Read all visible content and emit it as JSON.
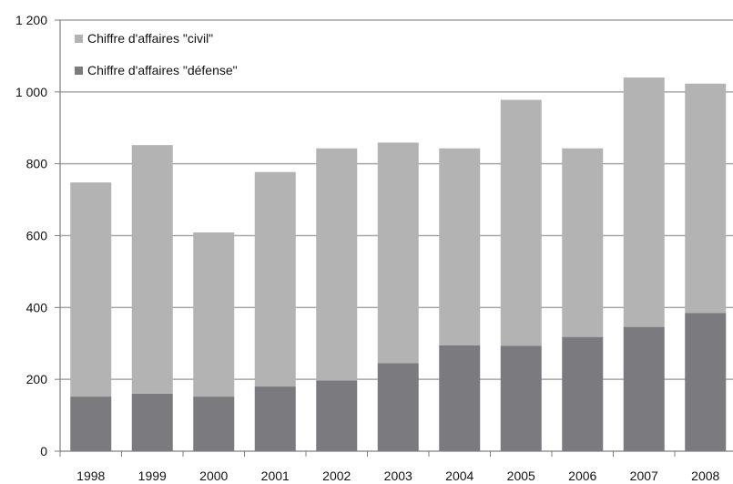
{
  "chart_data": {
    "type": "bar",
    "stacked": true,
    "title": "",
    "xlabel": "",
    "ylabel": "",
    "categories": [
      "1998",
      "1999",
      "2000",
      "2001",
      "2002",
      "2003",
      "2004",
      "2005",
      "2006",
      "2007",
      "2008"
    ],
    "series": [
      {
        "name": "Chiffre d'affaires \"défense\"",
        "color": "#7a7a7f",
        "values": [
          152,
          160,
          152,
          180,
          197,
          245,
          295,
          293,
          318,
          346,
          385
        ]
      },
      {
        "name": "Chiffre d'affaires \"civil\"",
        "color": "#b3b3b3",
        "values": [
          596,
          692,
          457,
          597,
          646,
          614,
          548,
          685,
          525,
          694,
          638
        ]
      }
    ],
    "ylim": [
      0,
      1200
    ],
    "yticks": [
      0,
      200,
      400,
      600,
      800,
      1000,
      1200
    ],
    "ytick_labels": [
      "0",
      "200",
      "400",
      "600",
      "800",
      "1 000",
      "1 200"
    ],
    "grid": true,
    "legend_position": "top-left",
    "legend": [
      {
        "label": "Chiffre d'affaires \"civil\"",
        "color": "#b3b3b3"
      },
      {
        "label": "Chiffre d'affaires \"défense\"",
        "color": "#7a7a7f"
      }
    ]
  }
}
